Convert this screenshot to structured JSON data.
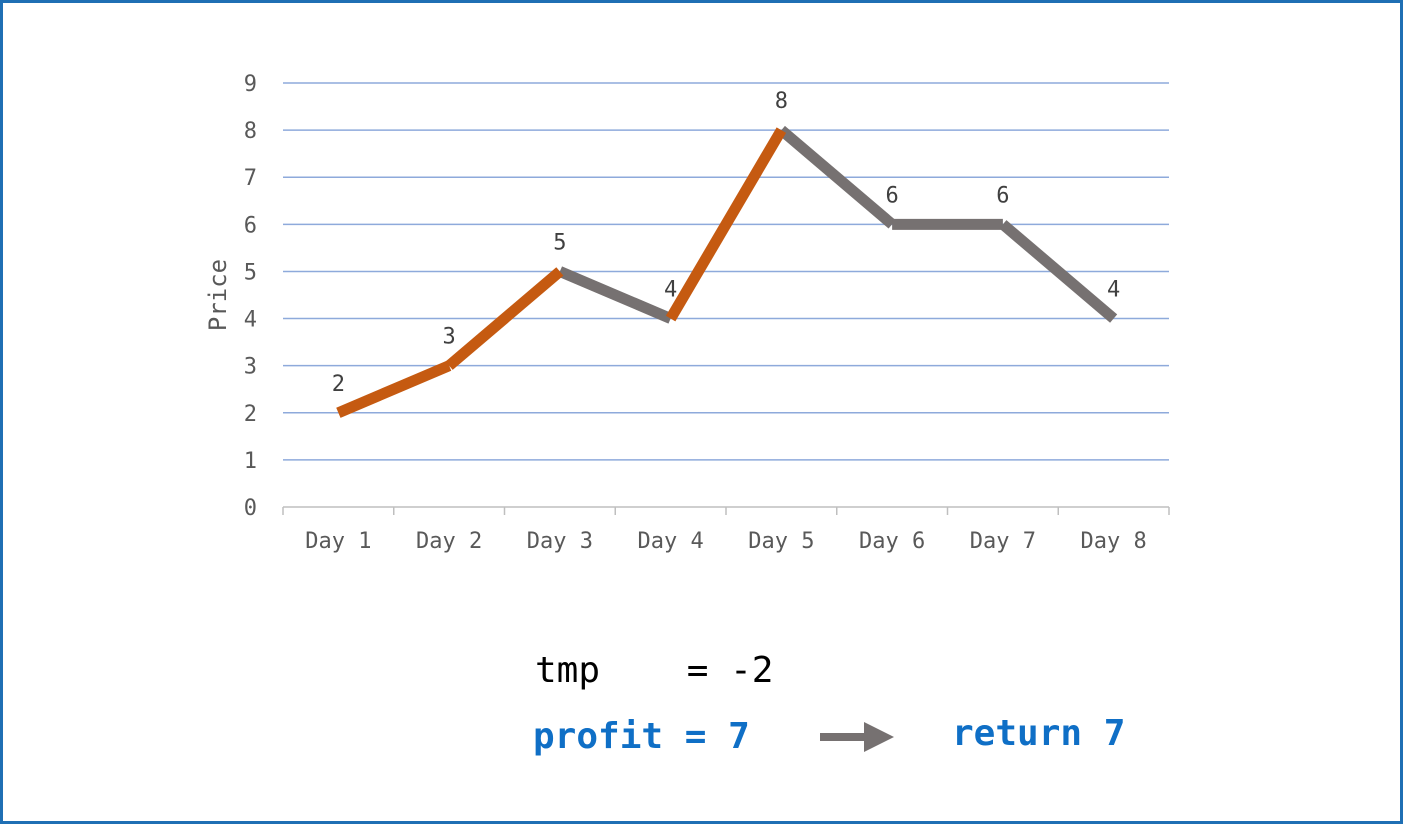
{
  "colors": {
    "border": "#1f6fb4",
    "grid": "#8eaadb",
    "buy_segment": "#c55a11",
    "other_segment": "#767171",
    "accent_text": "#0f6fc6"
  },
  "chart_data": {
    "type": "line",
    "categories": [
      "Day 1",
      "Day 2",
      "Day 3",
      "Day 4",
      "Day 5",
      "Day 6",
      "Day 7",
      "Day 8"
    ],
    "values": [
      2,
      3,
      5,
      4,
      8,
      6,
      6,
      4
    ],
    "ylabel": "Price",
    "xlabel": "",
    "ylim": [
      0,
      9
    ],
    "yticks": [
      "0",
      "1",
      "2",
      "3",
      "4",
      "5",
      "6",
      "7",
      "8",
      "9"
    ],
    "data_labels": [
      "2",
      "3",
      "5",
      "4",
      "8",
      "6",
      "6",
      "4"
    ],
    "grid": true,
    "highlighted_segments": [
      [
        0,
        1
      ],
      [
        1,
        2
      ],
      [
        3,
        4
      ]
    ]
  },
  "annotations": {
    "tmp_text": "tmp    = -2",
    "profit_text": "profit = 7",
    "return_text": "return 7",
    "arrow_icon": "right-arrow-icon"
  }
}
